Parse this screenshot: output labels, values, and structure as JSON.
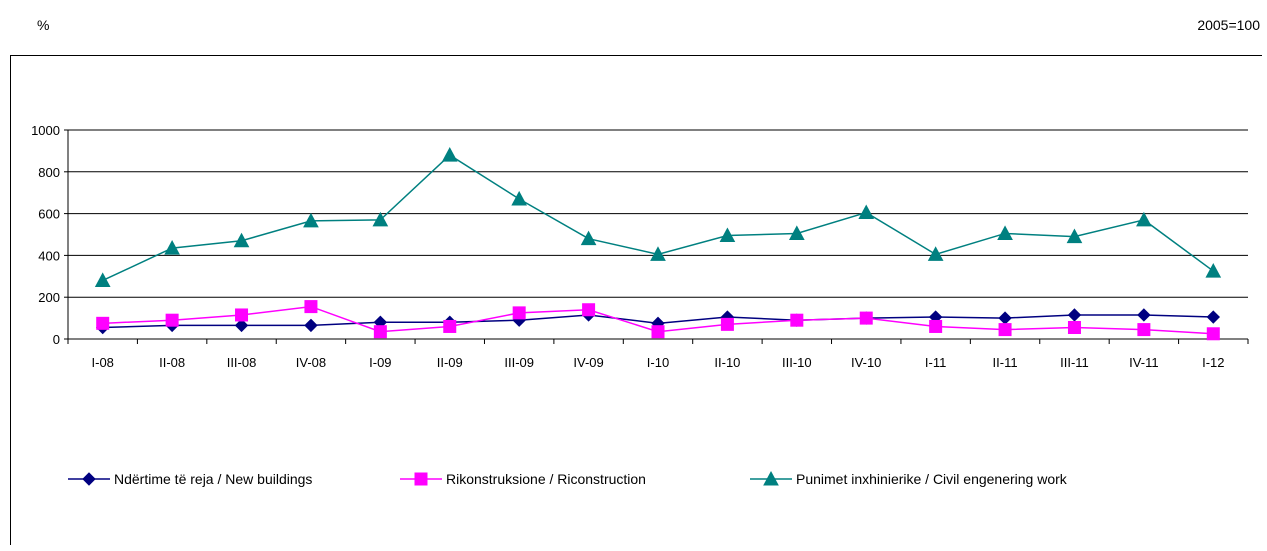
{
  "header": {
    "left_unit": "%",
    "right_note": "2005=100"
  },
  "chart_data": {
    "type": "line",
    "categories": [
      "I-08",
      "II-08",
      "III-08",
      "IV-08",
      "I-09",
      "II-09",
      "III-09",
      "IV-09",
      "I-10",
      "II-10",
      "III-10",
      "IV-10",
      "I-11",
      "II-11",
      "III-11",
      "IV-11",
      "I-12"
    ],
    "ylim": [
      0,
      1000
    ],
    "yticks": [
      0,
      200,
      400,
      600,
      800,
      1000
    ],
    "grid": true,
    "legend_position": "bottom",
    "series": [
      {
        "name": "Ndërtime të reja / New buildings",
        "color": "#000080",
        "marker": "diamond",
        "values": [
          55,
          65,
          65,
          65,
          80,
          80,
          90,
          115,
          75,
          105,
          90,
          100,
          105,
          100,
          115,
          115,
          105
        ]
      },
      {
        "name": "Rikonstruksione / Riconstruction",
        "color": "#ff00ff",
        "marker": "square",
        "values": [
          75,
          90,
          115,
          155,
          35,
          60,
          125,
          140,
          35,
          70,
          90,
          100,
          60,
          45,
          55,
          45,
          25
        ]
      },
      {
        "name": "Punimet inxhinierike / Civil engenering work",
        "color": "#008080",
        "marker": "triangle",
        "values": [
          280,
          435,
          470,
          565,
          570,
          880,
          670,
          480,
          405,
          495,
          505,
          605,
          405,
          505,
          490,
          570,
          325
        ]
      }
    ]
  }
}
